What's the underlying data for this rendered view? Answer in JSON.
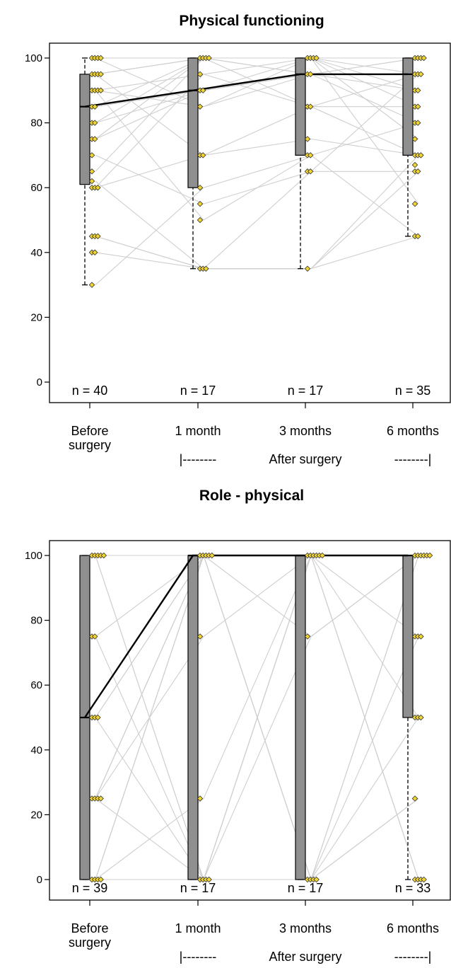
{
  "chart_data": [
    {
      "type": "boxplot",
      "title": "Physical functioning",
      "categories": [
        "Before\nsurgery",
        "1 month",
        "3 months",
        "6 months"
      ],
      "group_label": "After surgery",
      "group_bracket_left": "|--------",
      "group_bracket_right": "--------|",
      "n_labels": [
        "n = 40",
        "n = 17",
        "n = 17",
        "n = 35"
      ],
      "ylim": [
        -5,
        105
      ],
      "yticks": [
        0,
        20,
        40,
        60,
        80,
        100
      ],
      "ytick_labels": [
        "0",
        "20",
        "40",
        "60",
        "80",
        "100"
      ],
      "boxes": [
        {
          "whisker_low": 30,
          "q1": 61,
          "median": 85,
          "q3": 95,
          "whisker_high": 100
        },
        {
          "whisker_low": 35,
          "q1": 60,
          "median": 90,
          "q3": 100,
          "whisker_high": 100
        },
        {
          "whisker_low": 35,
          "q1": 70,
          "median": 95,
          "q3": 100,
          "whisker_high": 100
        },
        {
          "whisker_low": 45,
          "q1": 70,
          "median": 95,
          "q3": 100,
          "whisker_high": 100
        }
      ],
      "points": [
        [
          100,
          100,
          100,
          100,
          95,
          95,
          95,
          95,
          90,
          90,
          90,
          90,
          85,
          85,
          80,
          80,
          75,
          75,
          70,
          65,
          62,
          60,
          60,
          60,
          45,
          45,
          45,
          40,
          40,
          30
        ],
        [
          100,
          100,
          100,
          100,
          95,
          90,
          90,
          85,
          70,
          70,
          60,
          55,
          50,
          35,
          35,
          35
        ],
        [
          100,
          100,
          100,
          100,
          95,
          95,
          85,
          85,
          75,
          70,
          70,
          65,
          65,
          35
        ],
        [
          100,
          100,
          100,
          100,
          95,
          95,
          95,
          90,
          90,
          85,
          85,
          80,
          80,
          75,
          70,
          70,
          70,
          67,
          65,
          65,
          55,
          45,
          45
        ]
      ],
      "paths": [
        [
          100,
          100,
          100,
          100
        ],
        [
          95,
          100,
          100,
          95
        ],
        [
          90,
          95,
          100,
          100
        ],
        [
          85,
          90,
          95,
          95
        ],
        [
          100,
          85,
          95,
          90
        ],
        [
          95,
          70,
          75,
          70
        ],
        [
          80,
          90,
          100,
          100
        ],
        [
          75,
          100,
          85,
          95
        ],
        [
          60,
          70,
          85,
          85
        ],
        [
          45,
          35,
          35,
          70
        ],
        [
          40,
          35,
          65,
          65
        ],
        [
          30,
          60,
          70,
          80
        ],
        [
          90,
          50,
          70,
          45
        ],
        [
          100,
          100,
          100,
          55
        ],
        [
          62,
          35,
          35,
          45
        ],
        [
          70,
          55,
          65,
          95
        ],
        [
          95,
          100,
          100,
          85
        ],
        [
          85,
          100,
          95,
          100
        ],
        [
          65,
          100,
          100,
          90
        ],
        [
          60,
          95,
          85,
          70
        ],
        [
          75,
          90,
          95,
          80
        ],
        [
          45,
          35,
          35,
          65
        ],
        [
          100,
          100,
          95,
          100
        ],
        [
          90,
          85,
          100,
          100
        ],
        [
          80,
          100,
          100,
          75
        ]
      ],
      "median_line": [
        85,
        90,
        95,
        95
      ]
    },
    {
      "type": "boxplot",
      "title": "Role - physical",
      "categories": [
        "Before\nsurgery",
        "1 month",
        "3 months",
        "6 months"
      ],
      "group_label": "After surgery",
      "group_bracket_left": "|--------",
      "group_bracket_right": "--------|",
      "n_labels": [
        "n = 39",
        "n = 17",
        "n = 17",
        "n = 33"
      ],
      "ylim": [
        -5,
        105
      ],
      "yticks": [
        0,
        20,
        40,
        60,
        80,
        100
      ],
      "ytick_labels": [
        "0",
        "20",
        "40",
        "60",
        "80",
        "100"
      ],
      "boxes": [
        {
          "whisker_low": 0,
          "q1": 0,
          "median": 50,
          "q3": 100,
          "whisker_high": 100
        },
        {
          "whisker_low": 0,
          "q1": 0,
          "median": 100,
          "q3": 100,
          "whisker_high": 100
        },
        {
          "whisker_low": 0,
          "q1": 0,
          "median": 100,
          "q3": 100,
          "whisker_high": 100
        },
        {
          "whisker_low": 0,
          "q1": 50,
          "median": 100,
          "q3": 100,
          "whisker_high": 100
        }
      ],
      "points": [
        [
          100,
          100,
          100,
          100,
          100,
          75,
          75,
          50,
          50,
          50,
          25,
          25,
          25,
          25,
          0,
          0,
          0,
          0
        ],
        [
          100,
          100,
          100,
          100,
          100,
          75,
          25,
          0,
          0,
          0,
          0
        ],
        [
          100,
          100,
          100,
          100,
          100,
          100,
          75,
          0,
          0,
          0,
          0
        ],
        [
          100,
          100,
          100,
          100,
          100,
          100,
          75,
          75,
          75,
          50,
          50,
          50,
          25,
          0,
          0,
          0,
          0
        ]
      ],
      "paths": [
        [
          100,
          100,
          100,
          100
        ],
        [
          100,
          0,
          100,
          100
        ],
        [
          100,
          100,
          0,
          75
        ],
        [
          100,
          100,
          100,
          0
        ],
        [
          75,
          100,
          100,
          100
        ],
        [
          75,
          0,
          0,
          50
        ],
        [
          50,
          100,
          100,
          100
        ],
        [
          50,
          0,
          75,
          100
        ],
        [
          25,
          100,
          100,
          75
        ],
        [
          25,
          100,
          0,
          100
        ],
        [
          25,
          0,
          100,
          100
        ],
        [
          25,
          75,
          100,
          50
        ],
        [
          0,
          100,
          100,
          100
        ],
        [
          0,
          25,
          100,
          100
        ],
        [
          0,
          100,
          0,
          25
        ],
        [
          0,
          0,
          100,
          100
        ],
        [
          0,
          100,
          100,
          0
        ],
        [
          100,
          0,
          100,
          0
        ],
        [
          0,
          0,
          0,
          25
        ],
        [
          50,
          100,
          0,
          100
        ],
        [
          100,
          100,
          100,
          100
        ],
        [
          25,
          100,
          75,
          100
        ]
      ],
      "median_line": [
        50,
        100,
        100,
        100
      ]
    }
  ],
  "colors": {
    "box_fill": "#8f8f8f",
    "point_fill": "#f2d530",
    "path_line": "#cfcfcf",
    "median_line": "#000000"
  }
}
